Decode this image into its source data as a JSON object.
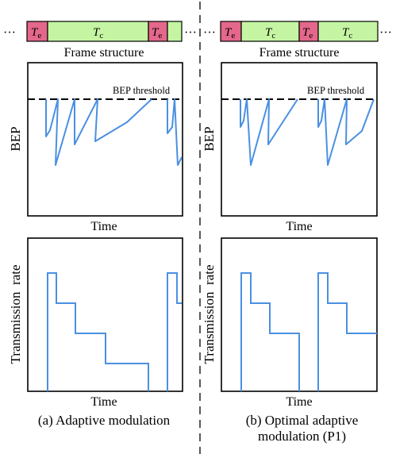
{
  "colors": {
    "estimation_slot": "#e4678c",
    "transmission_slot": "#c5f5a2",
    "curve": "#4a90e2",
    "frame_outline": "#000000",
    "threshold_line": "#000000"
  },
  "left": {
    "frame_structure": {
      "ellipsis_left": "···",
      "ellipsis_right": "···",
      "slots": [
        {
          "kind": "estimation",
          "label_main": "T",
          "label_sub": "e"
        },
        {
          "kind": "transmission",
          "label_main": "T",
          "label_sub": "c"
        },
        {
          "kind": "estimation",
          "label_main": "T",
          "label_sub": "e"
        },
        {
          "kind": "transmission",
          "label_main": "",
          "label_sub": ""
        }
      ],
      "caption": "Frame structure"
    },
    "bep_plot": {
      "ylabel": "BEP",
      "xlabel": "Time",
      "threshold_label": "BEP threshold"
    },
    "rate_plot": {
      "ylabel": "Transmission  rate",
      "xlabel": "Time"
    },
    "caption_line1": "(a) Adaptive modulation",
    "caption_line2": ""
  },
  "right": {
    "frame_structure": {
      "ellipsis_left": "···",
      "ellipsis_right": "···",
      "slots": [
        {
          "kind": "estimation",
          "label_main": "T",
          "label_sub": "e"
        },
        {
          "kind": "transmission",
          "label_main": "T",
          "label_sub": "c"
        },
        {
          "kind": "estimation",
          "label_main": "T",
          "label_sub": "e"
        },
        {
          "kind": "transmission",
          "label_main": "T",
          "label_sub": "c"
        }
      ],
      "caption": "Frame structure"
    },
    "bep_plot": {
      "ylabel": "BEP",
      "xlabel": "Time",
      "threshold_label": "BEP threshold"
    },
    "rate_plot": {
      "ylabel": "Transmission  rate",
      "xlabel": "Time"
    },
    "caption_line1": "(b) Optimal adaptive",
    "caption_line2": "modulation (P1)"
  }
}
